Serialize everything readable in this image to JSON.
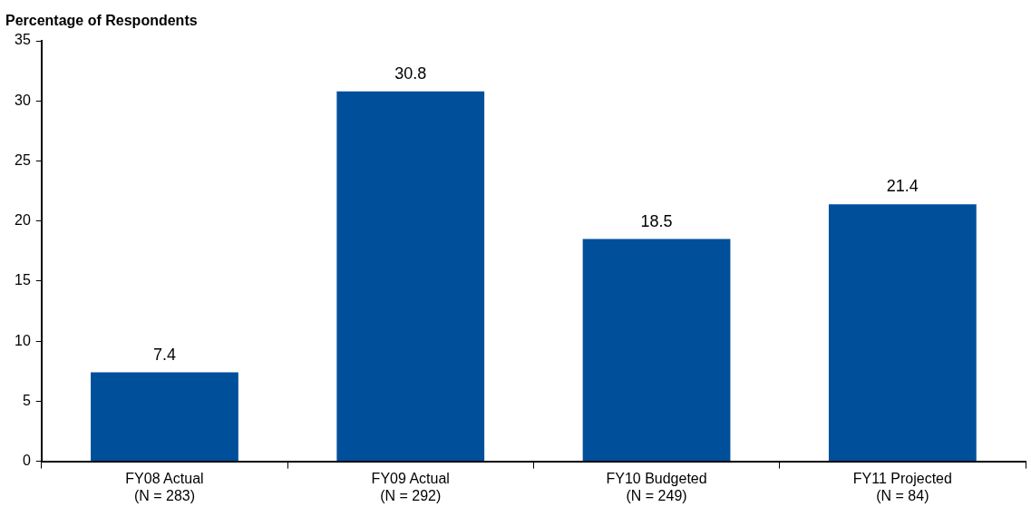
{
  "chart_data": {
    "type": "bar",
    "ylabel": "Percentage of Respondents",
    "categories": [
      "FY08 Actual\n(N = 283)",
      "FY09 Actual\n(N = 292)",
      "FY10 Budgeted\n(N = 249)",
      "FY11 Projected\n(N = 84)"
    ],
    "values": [
      7.4,
      30.8,
      18.5,
      21.4
    ],
    "color": "#004f9b",
    "ylim": [
      0,
      35
    ],
    "yticks": [
      0,
      5,
      10,
      15,
      20,
      25,
      30,
      35
    ],
    "grid": false,
    "legend": false,
    "data_labels": true
  }
}
